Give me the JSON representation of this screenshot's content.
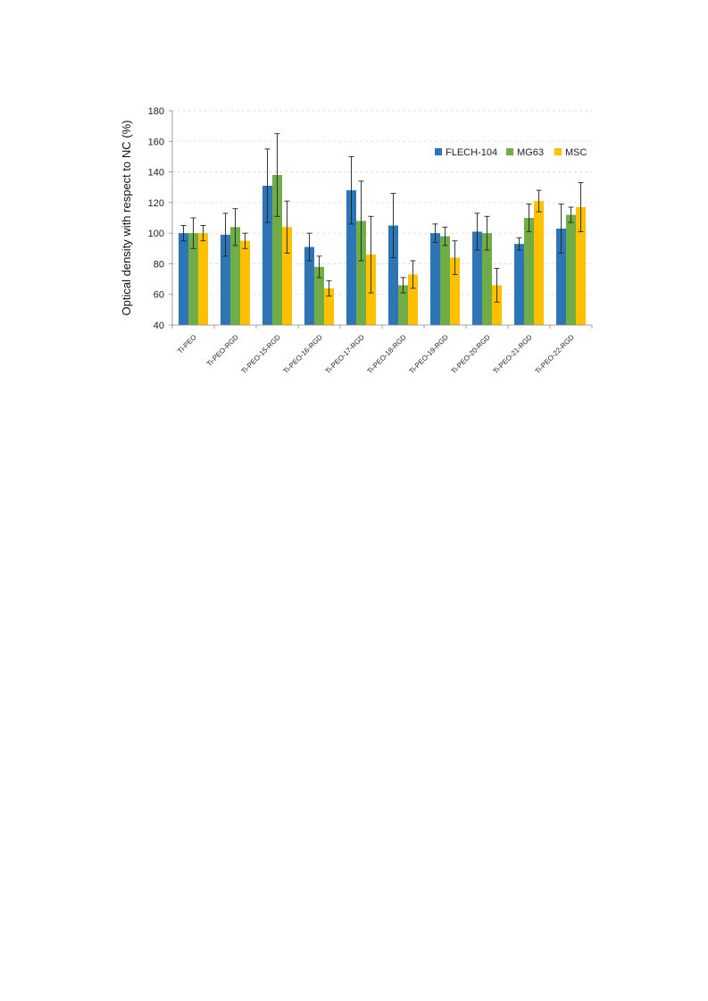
{
  "chart_data": {
    "type": "bar",
    "title": "",
    "xlabel": "",
    "ylabel": "Optical density with respect to NC (%)",
    "ylim": [
      40,
      180
    ],
    "yticks": [
      40,
      60,
      80,
      100,
      120,
      140,
      160,
      180
    ],
    "grid": true,
    "legend_position": "top-right",
    "categories": [
      "Ti-PEO",
      "Ti-PEO-RGD",
      "Ti-PEO-15-RGD",
      "Ti-PEO-16-RGD",
      "Ti-PEO-17-RGD",
      "Ti-PEO-18-RGD",
      "Ti-PEO-19-RGD",
      "Ti-PEO-20-RGD",
      "Ti-PEO-21-RGD",
      "Ti-PEO-22-RGD"
    ],
    "series": [
      {
        "name": "FLECH-104",
        "color": "#2e75b6",
        "values": [
          100,
          99,
          131,
          91,
          128,
          105,
          100,
          101,
          93,
          103
        ],
        "errors": [
          5,
          14,
          24,
          9,
          22,
          21,
          6,
          12,
          4,
          16
        ]
      },
      {
        "name": "MG63",
        "color": "#70ad47",
        "values": [
          100,
          104,
          138,
          78,
          108,
          66,
          98,
          100,
          110,
          112
        ],
        "errors": [
          10,
          12,
          27,
          7,
          26,
          5,
          6,
          11,
          9,
          5
        ]
      },
      {
        "name": "MSC",
        "color": "#ffc000",
        "values": [
          100,
          95,
          104,
          64,
          86,
          73,
          84,
          66,
          121,
          117
        ],
        "errors": [
          5,
          5,
          17,
          5,
          25,
          9,
          11,
          11,
          7,
          16
        ]
      }
    ]
  }
}
